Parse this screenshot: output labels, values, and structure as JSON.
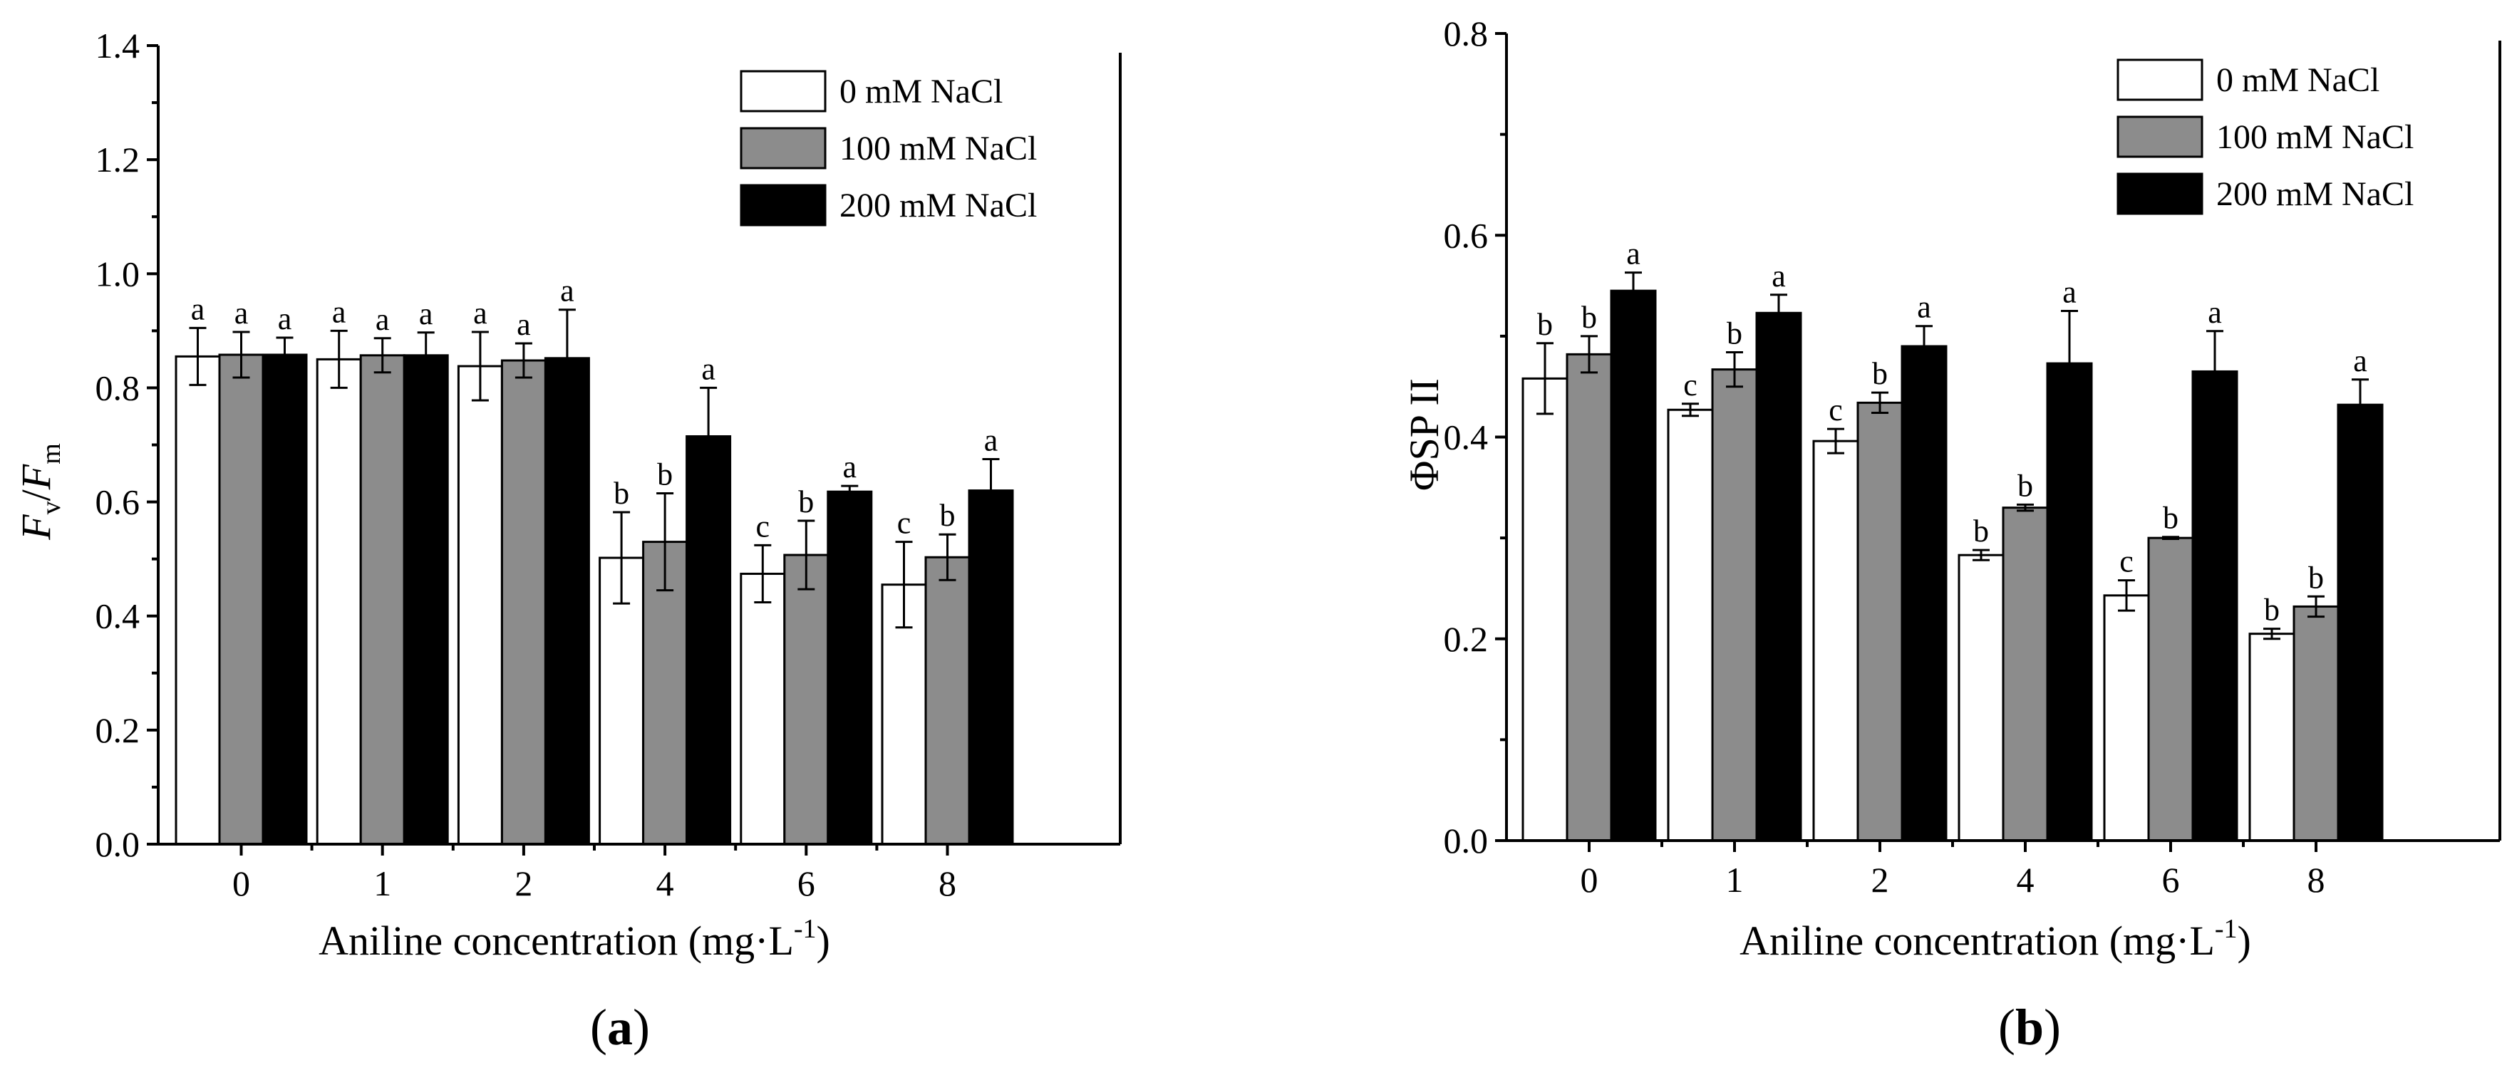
{
  "chart_data": [
    {
      "type": "bar",
      "panel_label": "a",
      "categories": [
        "0",
        "1",
        "2",
        "4",
        "6",
        "8"
      ],
      "xlabel_main": "Aniline concentration (mg·L",
      "xlabel_sup": "-1",
      "xlabel_end": ")",
      "ylabel_parts": {
        "f1": "F",
        "sub1": "v",
        "slash": "/",
        "f2": "F",
        "sub2": "m"
      },
      "ylim": [
        0,
        1.4
      ],
      "yticks": [
        "0.0",
        "0.2",
        "0.4",
        "0.6",
        "0.8",
        "1.0",
        "1.2",
        "1.4"
      ],
      "legend_placement": "top-right",
      "series": [
        {
          "name": "0 mM NaCl",
          "color": "#ffffff",
          "values": [
            0.855,
            0.85,
            0.838,
            0.502,
            0.474,
            0.455
          ],
          "errors": [
            0.05,
            0.05,
            0.06,
            0.08,
            0.05,
            0.075
          ],
          "letters": [
            "a",
            "a",
            "a",
            "b",
            "c",
            "c"
          ]
        },
        {
          "name": "100 mM NaCl",
          "color": "#8c8c8c",
          "values": [
            0.858,
            0.857,
            0.848,
            0.53,
            0.507,
            0.503
          ],
          "errors": [
            0.04,
            0.03,
            0.03,
            0.085,
            0.06,
            0.04
          ],
          "letters": [
            "a",
            "a",
            "a",
            "b",
            "b",
            "b"
          ]
        },
        {
          "name": "200 mM NaCl",
          "color": "#000000",
          "values": [
            0.858,
            0.857,
            0.852,
            0.715,
            0.618,
            0.62
          ],
          "errors": [
            0.03,
            0.04,
            0.085,
            0.085,
            0.01,
            0.055
          ],
          "letters": [
            "a",
            "a",
            "a",
            "a",
            "a",
            "a"
          ]
        }
      ]
    },
    {
      "type": "bar",
      "panel_label": "b",
      "categories": [
        "0",
        "1",
        "2",
        "4",
        "6",
        "8"
      ],
      "xlabel_main": "Aniline concentration (mg·L",
      "xlabel_sup": "-1",
      "xlabel_end": ")",
      "ylabel": "ΦSP II",
      "ylim": [
        0,
        0.8
      ],
      "yticks": [
        "0.0",
        "0.2",
        "0.4",
        "0.6",
        "0.8"
      ],
      "legend_placement": "top-right",
      "series": [
        {
          "name": "0 mM NaCl",
          "color": "#ffffff",
          "values": [
            0.458,
            0.427,
            0.396,
            0.283,
            0.243,
            0.205
          ],
          "errors": [
            0.035,
            0.006,
            0.012,
            0.005,
            0.015,
            0.005
          ],
          "letters": [
            "b",
            "c",
            "c",
            "b",
            "c",
            "b"
          ]
        },
        {
          "name": "100 mM NaCl",
          "color": "#8c8c8c",
          "values": [
            0.482,
            0.467,
            0.434,
            0.33,
            0.3,
            0.232
          ],
          "errors": [
            0.018,
            0.017,
            0.01,
            0.003,
            0.001,
            0.01
          ],
          "letters": [
            "b",
            "b",
            "b",
            "b",
            "b",
            "b"
          ]
        },
        {
          "name": "200 mM NaCl",
          "color": "#000000",
          "values": [
            0.545,
            0.523,
            0.49,
            0.473,
            0.465,
            0.432
          ],
          "errors": [
            0.018,
            0.018,
            0.02,
            0.052,
            0.04,
            0.025
          ],
          "letters": [
            "a",
            "a",
            "a",
            "a",
            "a",
            "a"
          ]
        }
      ]
    }
  ]
}
